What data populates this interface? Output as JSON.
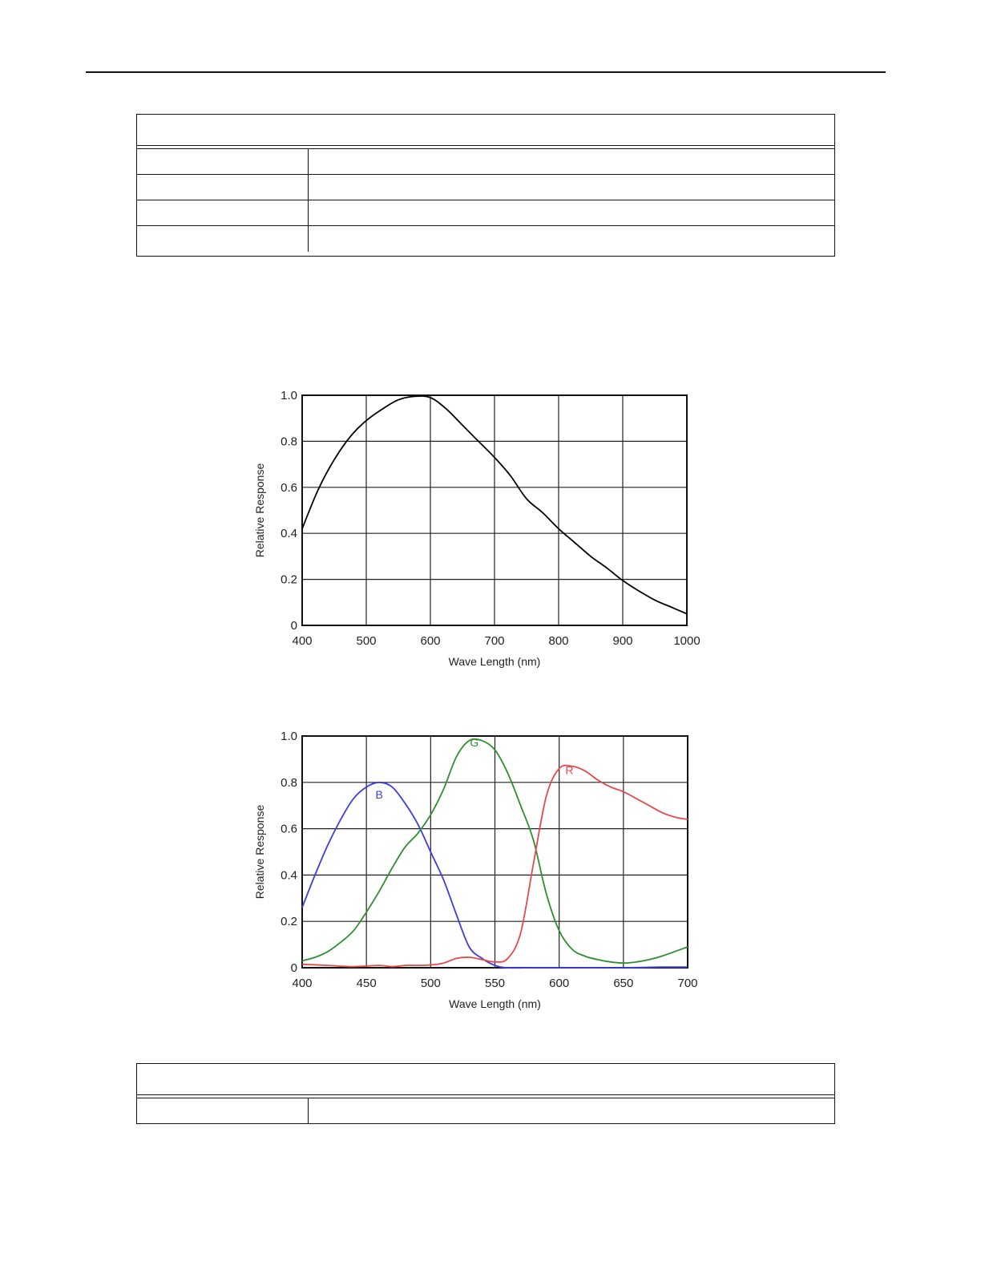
{
  "spec_table_1": {
    "header": "",
    "rows": [
      {
        "label": "",
        "value": ""
      },
      {
        "label": "",
        "value": ""
      },
      {
        "label": "",
        "value": ""
      },
      {
        "label": "",
        "value": ""
      }
    ]
  },
  "spec_table_2": {
    "header": "",
    "rows": [
      {
        "label": "",
        "value": ""
      }
    ]
  },
  "chart_data": [
    {
      "type": "line",
      "xlabel": "Wave Length (nm)",
      "ylabel": "Relative Response",
      "xlim": [
        400,
        1000
      ],
      "ylim": [
        0,
        1.0
      ],
      "x_ticks": [
        "400",
        "500",
        "600",
        "700",
        "800",
        "900",
        "1000"
      ],
      "y_ticks": [
        "0",
        "0.2",
        "0.4",
        "0.6",
        "0.8",
        "1.0"
      ],
      "grid": true,
      "series": [
        {
          "color": "#000000",
          "points": [
            [
              400,
              0.42
            ],
            [
              425,
              0.59
            ],
            [
              450,
              0.72
            ],
            [
              475,
              0.82
            ],
            [
              500,
              0.89
            ],
            [
              525,
              0.94
            ],
            [
              550,
              0.98
            ],
            [
              575,
              0.995
            ],
            [
              600,
              0.99
            ],
            [
              625,
              0.94
            ],
            [
              650,
              0.87
            ],
            [
              675,
              0.8
            ],
            [
              700,
              0.73
            ],
            [
              725,
              0.65
            ],
            [
              750,
              0.55
            ],
            [
              775,
              0.49
            ],
            [
              800,
              0.42
            ],
            [
              825,
              0.36
            ],
            [
              850,
              0.3
            ],
            [
              875,
              0.25
            ],
            [
              900,
              0.195
            ],
            [
              925,
              0.15
            ],
            [
              950,
              0.11
            ],
            [
              975,
              0.08
            ],
            [
              1000,
              0.05
            ]
          ]
        }
      ]
    },
    {
      "type": "line",
      "xlabel": "Wave Length (nm)",
      "ylabel": "Relative Response",
      "xlim": [
        400,
        700
      ],
      "ylim": [
        0,
        1.0
      ],
      "x_ticks": [
        "400",
        "450",
        "500",
        "550",
        "600",
        "650",
        "700"
      ],
      "y_ticks": [
        "0",
        "0.2",
        "0.4",
        "0.6",
        "0.8",
        "1.0"
      ],
      "grid": true,
      "series": [
        {
          "name": "B",
          "color": "#3b3be8",
          "label_at": [
            460,
            0.73
          ],
          "points": [
            [
              400,
              0.26
            ],
            [
              410,
              0.4
            ],
            [
              420,
              0.53
            ],
            [
              430,
              0.64
            ],
            [
              440,
              0.73
            ],
            [
              450,
              0.78
            ],
            [
              460,
              0.8
            ],
            [
              470,
              0.78
            ],
            [
              480,
              0.71
            ],
            [
              490,
              0.62
            ],
            [
              500,
              0.5
            ],
            [
              510,
              0.38
            ],
            [
              520,
              0.23
            ],
            [
              530,
              0.09
            ],
            [
              540,
              0.04
            ],
            [
              550,
              0.01
            ],
            [
              560,
              0.0
            ],
            [
              580,
              0.0
            ],
            [
              600,
              0.0
            ],
            [
              650,
              0.0
            ],
            [
              680,
              0.003
            ],
            [
              700,
              0.003
            ]
          ]
        },
        {
          "name": "G",
          "color": "#2f8f2f",
          "label_at": [
            534,
            0.955
          ],
          "points": [
            [
              400,
              0.03
            ],
            [
              410,
              0.045
            ],
            [
              420,
              0.07
            ],
            [
              430,
              0.11
            ],
            [
              440,
              0.16
            ],
            [
              450,
              0.24
            ],
            [
              460,
              0.33
            ],
            [
              470,
              0.43
            ],
            [
              480,
              0.52
            ],
            [
              490,
              0.58
            ],
            [
              500,
              0.66
            ],
            [
              510,
              0.77
            ],
            [
              520,
              0.91
            ],
            [
              530,
              0.98
            ],
            [
              540,
              0.98
            ],
            [
              550,
              0.94
            ],
            [
              560,
              0.84
            ],
            [
              570,
              0.7
            ],
            [
              580,
              0.55
            ],
            [
              590,
              0.32
            ],
            [
              600,
              0.16
            ],
            [
              610,
              0.08
            ],
            [
              620,
              0.05
            ],
            [
              630,
              0.035
            ],
            [
              640,
              0.025
            ],
            [
              650,
              0.02
            ],
            [
              660,
              0.025
            ],
            [
              670,
              0.035
            ],
            [
              680,
              0.05
            ],
            [
              690,
              0.07
            ],
            [
              700,
              0.09
            ]
          ]
        },
        {
          "name": "R",
          "color": "#e84848",
          "label_at": [
            608,
            0.835
          ],
          "points": [
            [
              400,
              0.015
            ],
            [
              420,
              0.01
            ],
            [
              440,
              0.005
            ],
            [
              460,
              0.01
            ],
            [
              470,
              0.005
            ],
            [
              480,
              0.01
            ],
            [
              490,
              0.01
            ],
            [
              500,
              0.012
            ],
            [
              510,
              0.02
            ],
            [
              520,
              0.04
            ],
            [
              530,
              0.045
            ],
            [
              540,
              0.035
            ],
            [
              550,
              0.025
            ],
            [
              560,
              0.04
            ],
            [
              570,
              0.15
            ],
            [
              580,
              0.45
            ],
            [
              590,
              0.74
            ],
            [
              600,
              0.86
            ],
            [
              610,
              0.87
            ],
            [
              620,
              0.85
            ],
            [
              630,
              0.81
            ],
            [
              640,
              0.78
            ],
            [
              650,
              0.76
            ],
            [
              660,
              0.73
            ],
            [
              670,
              0.7
            ],
            [
              680,
              0.67
            ],
            [
              690,
              0.65
            ],
            [
              700,
              0.64
            ]
          ]
        }
      ]
    }
  ]
}
